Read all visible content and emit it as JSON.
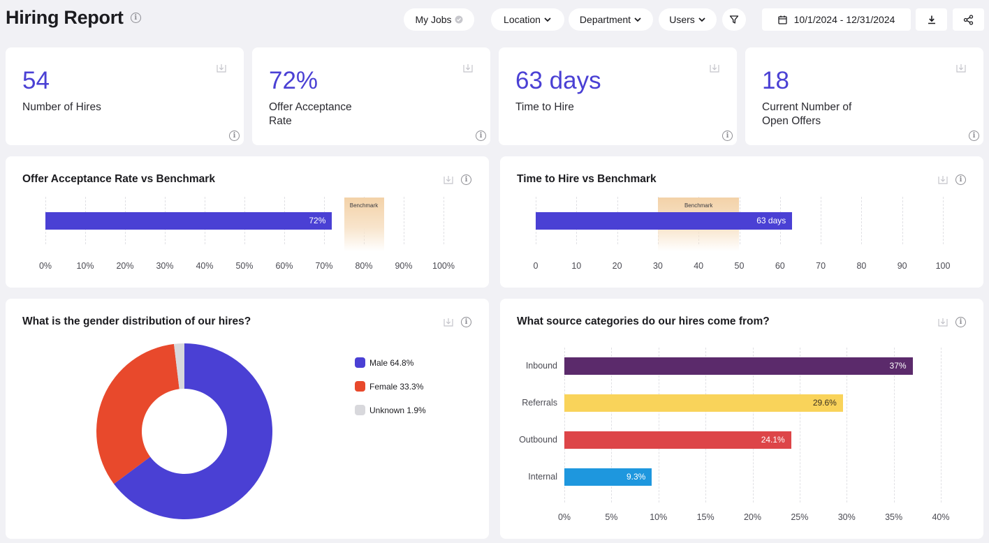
{
  "header": {
    "title": "Hiring Report",
    "my_jobs": "My Jobs",
    "location": "Location",
    "department": "Department",
    "users": "Users",
    "date_range": "10/1/2024 - 12/31/2024"
  },
  "kpis": [
    {
      "value": "54",
      "label": "Number of Hires"
    },
    {
      "value": "72%",
      "label": "Offer Acceptance Rate"
    },
    {
      "value": "63 days",
      "label": "Time to Hire"
    },
    {
      "value": "18",
      "label": "Current Number of Open Offers"
    }
  ],
  "colors": {
    "accent": "#4a40d4",
    "benchmark": "#f3d2a8",
    "female": "#e8492c",
    "unknown": "#d8d8dc"
  },
  "chart_data": [
    {
      "type": "bar",
      "title": "Offer Acceptance Rate vs Benchmark",
      "values": [
        72
      ],
      "value_label": "72%",
      "benchmark_label": "Benchmark",
      "benchmark_range": [
        75,
        85
      ],
      "xlim": [
        0,
        100
      ],
      "ticks": [
        "0%",
        "10%",
        "20%",
        "30%",
        "40%",
        "50%",
        "60%",
        "70%",
        "80%",
        "90%",
        "100%"
      ]
    },
    {
      "type": "bar",
      "title": "Time to Hire vs Benchmark",
      "values": [
        63
      ],
      "value_label": "63 days",
      "benchmark_label": "Benchmark",
      "benchmark_range": [
        30,
        50
      ],
      "xlim": [
        0,
        100
      ],
      "ticks": [
        "0",
        "10",
        "20",
        "30",
        "40",
        "50",
        "60",
        "70",
        "80",
        "90",
        "100"
      ]
    },
    {
      "type": "pie",
      "title": "What is the gender distribution of our hires?",
      "slices": [
        {
          "name": "Male",
          "value": 64.8,
          "label": "Male 64.8%",
          "color": "#4a40d4"
        },
        {
          "name": "Female",
          "value": 33.3,
          "label": "Female 33.3%",
          "color": "#e8492c"
        },
        {
          "name": "Unknown",
          "value": 1.9,
          "label": "Unknown 1.9%",
          "color": "#d8d8dc"
        }
      ]
    },
    {
      "type": "bar",
      "title": "What source categories do our hires come from?",
      "categories": [
        "Inbound",
        "Referrals",
        "Outbound",
        "Internal"
      ],
      "values": [
        37,
        29.6,
        24.1,
        9.3
      ],
      "value_labels": [
        "37%",
        "29.6%",
        "24.1%",
        "9.3%"
      ],
      "colors": [
        "#5b2a6b",
        "#f9d35a",
        "#dd4548",
        "#1e97de"
      ],
      "xlim": [
        0,
        40
      ],
      "ticks": [
        "0%",
        "5%",
        "10%",
        "15%",
        "20%",
        "25%",
        "30%",
        "35%",
        "40%"
      ]
    }
  ]
}
